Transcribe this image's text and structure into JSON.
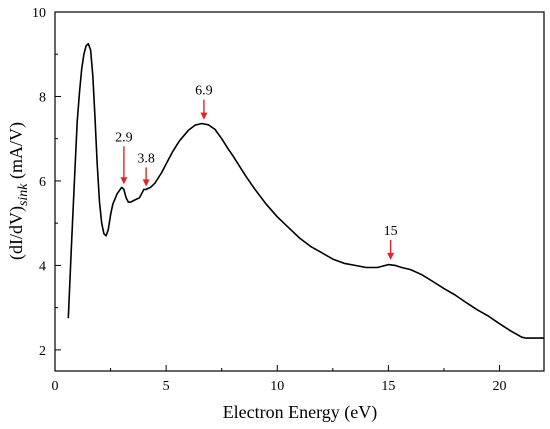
{
  "chart_data": {
    "type": "line",
    "title": "",
    "xlabel": "Electron Energy (eV)",
    "ylabel_main": "(dI/dV)",
    "ylabel_sub": "sink",
    "ylabel_unit": " (mA/V)",
    "xlim": [
      0,
      22
    ],
    "ylim": [
      1.5,
      10
    ],
    "x_ticks": [
      0,
      5,
      10,
      15,
      20
    ],
    "y_ticks": [
      2,
      4,
      6,
      8,
      10
    ],
    "grid": false,
    "legend": "none",
    "colors": {
      "line": "#000000",
      "arrow": "#e8202a"
    },
    "series": [
      {
        "x": [
          0.6,
          0.75,
          0.9,
          1.0,
          1.1,
          1.2,
          1.3,
          1.4,
          1.5,
          1.6,
          1.7,
          1.8,
          1.9,
          2.0,
          2.1,
          2.2,
          2.3,
          2.4,
          2.5,
          2.6,
          2.8,
          3.0,
          3.1,
          3.2,
          3.3,
          3.4,
          3.6,
          3.8,
          4.0,
          4.1,
          4.3,
          4.5,
          4.8,
          5.0,
          5.3,
          5.6,
          6.0,
          6.3,
          6.6,
          6.9,
          7.2,
          7.5,
          7.8,
          8.0,
          8.3,
          8.6,
          9.0,
          9.5,
          10.0,
          10.5,
          11.0,
          11.5,
          12.0,
          12.5,
          13.0,
          13.5,
          14.0,
          14.5,
          15.0,
          15.3,
          15.6,
          16.0,
          16.5,
          17.0,
          17.5,
          18.0,
          18.5,
          19.0,
          19.5,
          20.0,
          20.5,
          21.0,
          21.2,
          21.5,
          22.0
        ],
        "y": [
          2.75,
          4.6,
          6.3,
          7.4,
          8.1,
          8.65,
          9.0,
          9.2,
          9.25,
          9.1,
          8.5,
          7.5,
          6.4,
          5.5,
          5.0,
          4.75,
          4.7,
          4.85,
          5.2,
          5.45,
          5.7,
          5.85,
          5.8,
          5.6,
          5.5,
          5.5,
          5.55,
          5.6,
          5.8,
          5.8,
          5.85,
          5.95,
          6.2,
          6.4,
          6.7,
          6.95,
          7.2,
          7.32,
          7.36,
          7.33,
          7.22,
          7.0,
          6.75,
          6.6,
          6.35,
          6.1,
          5.8,
          5.45,
          5.15,
          4.9,
          4.65,
          4.45,
          4.3,
          4.15,
          4.05,
          4.0,
          3.95,
          3.95,
          4.02,
          4.0,
          3.95,
          3.9,
          3.78,
          3.62,
          3.45,
          3.3,
          3.12,
          2.95,
          2.8,
          2.62,
          2.45,
          2.3,
          2.28,
          2.28,
          2.28
        ]
      }
    ],
    "annotations": [
      {
        "label": "2.9",
        "x": 3.1,
        "y": 5.85,
        "arrow_len": 38
      },
      {
        "label": "3.8",
        "x": 4.1,
        "y": 5.8,
        "arrow_len": 19
      },
      {
        "label": "6.9",
        "x": 6.7,
        "y": 7.38,
        "arrow_len": 20
      },
      {
        "label": "15",
        "x": 15.1,
        "y": 4.06,
        "arrow_len": 20
      }
    ]
  }
}
